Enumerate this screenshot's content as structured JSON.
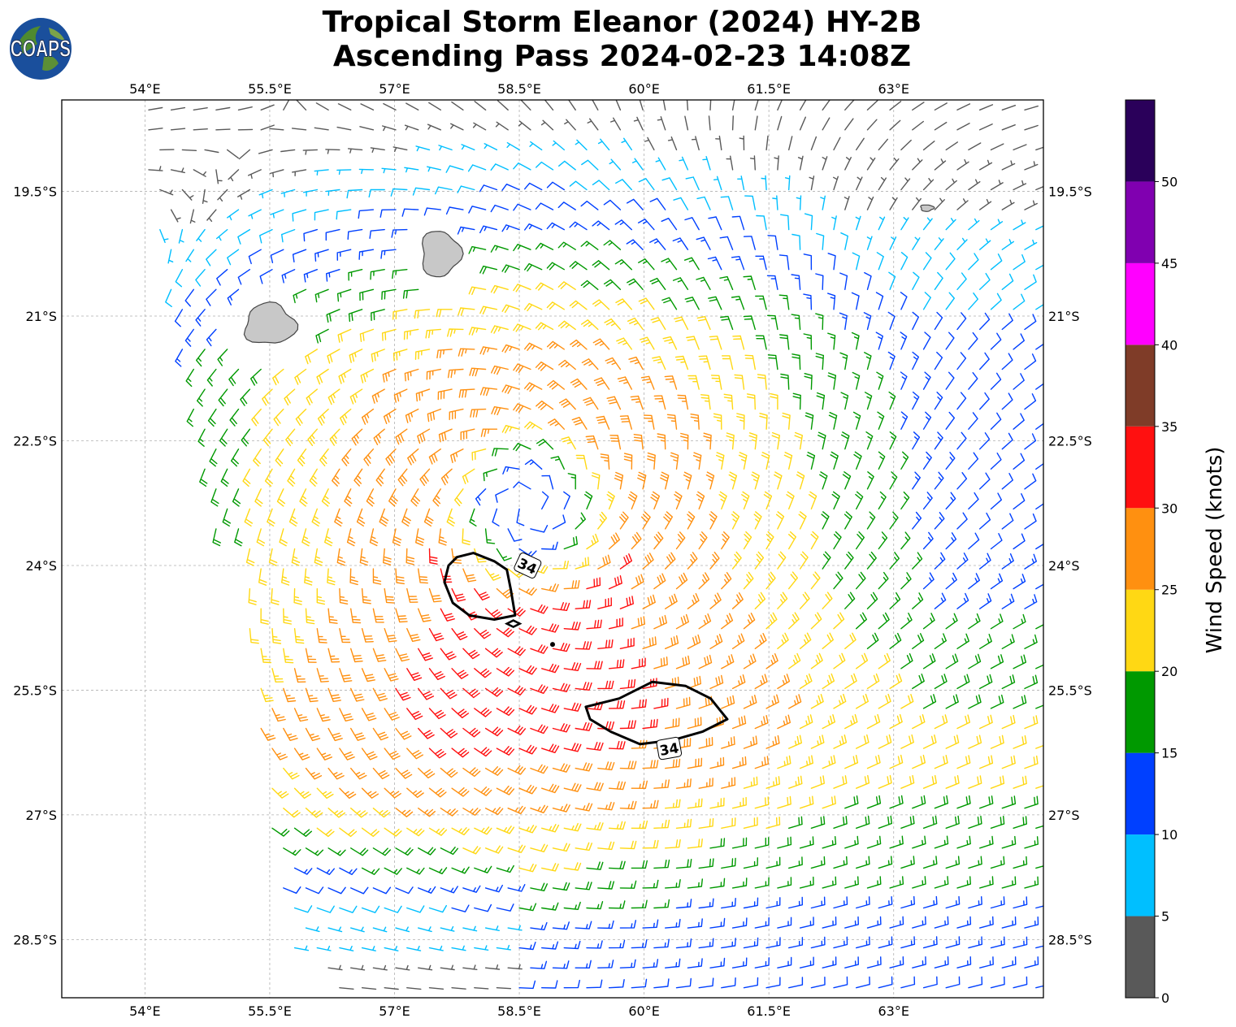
{
  "title": {
    "line1": "Tropical Storm Eleanor (2024) HY-2B",
    "line2": "Ascending Pass 2024-02-23 14:08Z"
  },
  "logo": {
    "text": "COAPS",
    "icon": "earth-globe-icon"
  },
  "chart_data": {
    "type": "map",
    "x": {
      "unit": "°E",
      "range": [
        53.0,
        64.8
      ],
      "ticks": [
        54,
        55.5,
        57,
        58.5,
        60,
        61.5,
        63
      ],
      "tick_labels": [
        "54°E",
        "55.5°E",
        "57°E",
        "58.5°E",
        "60°E",
        "61.5°E",
        "63°E"
      ]
    },
    "y": {
      "unit": "°S",
      "range": [
        18.4,
        29.2
      ],
      "ticks": [
        19.5,
        21,
        22.5,
        24,
        25.5,
        27,
        28.5
      ],
      "tick_labels": [
        "19.5°S",
        "21°S",
        "22.5°S",
        "24°S",
        "25.5°S",
        "27°S",
        "28.5°S"
      ]
    },
    "grid": true,
    "storm_center": {
      "lon": 58.6,
      "lat": 23.3
    },
    "contours": [
      {
        "label": "34",
        "lon": 58.6,
        "lat": 24.0
      },
      {
        "label": "34",
        "lon": 60.3,
        "lat": 26.2
      }
    ],
    "islands": [
      {
        "name": "",
        "lon": 55.5,
        "lat": 21.1
      },
      {
        "name": "",
        "lon": 57.55,
        "lat": 20.25
      },
      {
        "name": "",
        "lon": 63.4,
        "lat": 19.7
      }
    ],
    "colorbar": {
      "label": "Wind Speed (knots)",
      "bounds": [
        0,
        5,
        10,
        15,
        20,
        25,
        30,
        35,
        40,
        45,
        50
      ],
      "tick_labels": [
        "0",
        "5",
        "10",
        "15",
        "20",
        "25",
        "30",
        "35",
        "40",
        "45",
        "50"
      ],
      "colors": [
        "#595959",
        "#00bfff",
        "#0040ff",
        "#009900",
        "#ffd814",
        "#ff9010",
        "#ff1010",
        "#7f3c28",
        "#ff00ff",
        "#8000b0",
        "#2a005a"
      ]
    }
  }
}
